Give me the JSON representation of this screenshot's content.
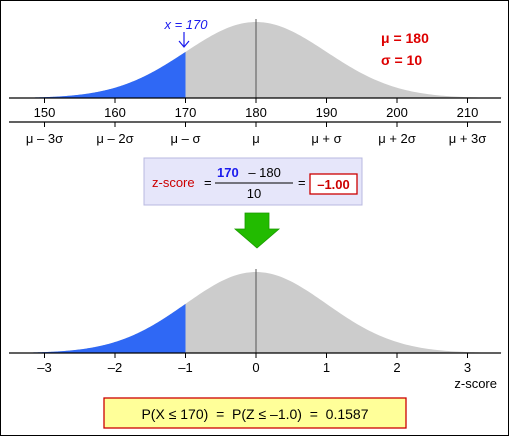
{
  "top_plot": {
    "marker_label": "x = 170",
    "marker_value": 170,
    "params": [
      "μ = 180",
      "σ = 10"
    ],
    "mu": 180,
    "sigma": 10,
    "x_ticks": [
      "150",
      "160",
      "170",
      "180",
      "190",
      "200",
      "210"
    ],
    "sigma_labels": [
      "μ – 3σ",
      "μ – 2σ",
      "μ – σ",
      "μ",
      "μ + σ",
      "μ + 2σ",
      "μ + 3σ"
    ]
  },
  "zscore_box": {
    "label": "z-score",
    "equals": "=",
    "numerator_bold": "170",
    "numerator_rest": "– 180",
    "denominator": "10",
    "equals2": "=",
    "result": "–1.00"
  },
  "bottom_plot": {
    "z_value": -1.0,
    "z_ticks": [
      "–3",
      "–2",
      "–1",
      "0",
      "1",
      "2",
      "3"
    ],
    "axis_label": "z-score"
  },
  "result_box": {
    "text": "P(X ≤ 170)  =  P(Z ≤ –1.0)  =  0.1587"
  },
  "colors": {
    "shade_blue": "#2f68f5",
    "curve_gray": "#cccccc",
    "arrow_green": "#22bb00",
    "param_red": "#dd0000",
    "box_lavender": "#e6e6fa",
    "result_yellow": "#ffff99",
    "result_border": "#cc0000"
  }
}
